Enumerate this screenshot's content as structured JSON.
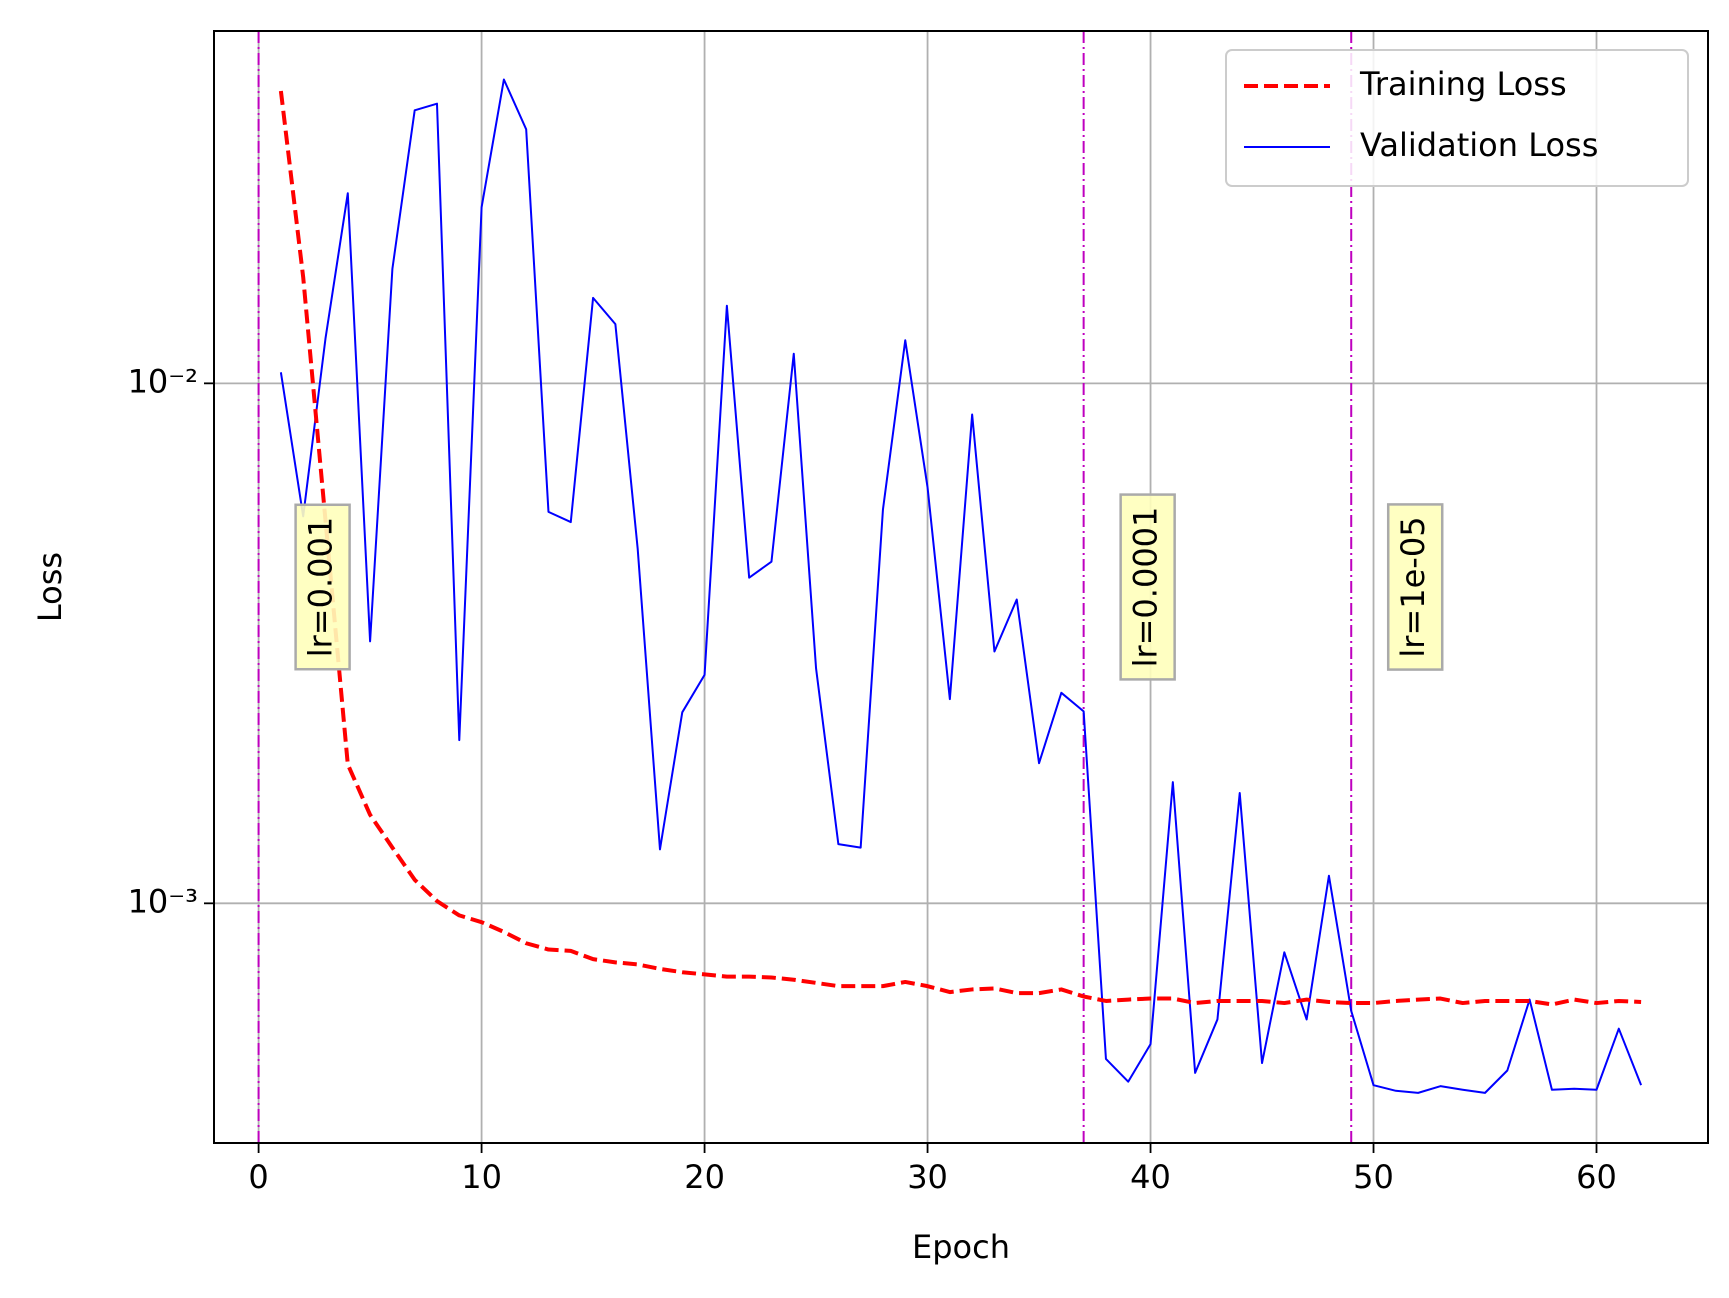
{
  "chart_data": {
    "type": "line",
    "xlabel": "Epoch",
    "ylabel": "Loss",
    "x": [
      1,
      2,
      3,
      4,
      5,
      6,
      7,
      8,
      9,
      10,
      11,
      12,
      13,
      14,
      15,
      16,
      17,
      18,
      19,
      20,
      21,
      22,
      23,
      24,
      25,
      26,
      27,
      28,
      29,
      30,
      31,
      32,
      33,
      34,
      35,
      36,
      37,
      38,
      39,
      40,
      41,
      42,
      43,
      44,
      45,
      46,
      47,
      48,
      49,
      50,
      51,
      52,
      53,
      54,
      55,
      56,
      57,
      58,
      59,
      60,
      61,
      62
    ],
    "series": [
      {
        "name": "Training Loss",
        "color": "#ff0000",
        "linestyle": "dashed",
        "values": [
          0.0365,
          0.016,
          0.00545,
          0.00185,
          0.00148,
          0.00128,
          0.00111,
          0.00101,
          0.000948,
          0.00092,
          0.000881,
          0.000838,
          0.000815,
          0.00081,
          0.000781,
          0.00077,
          0.000763,
          0.000748,
          0.000737,
          0.00073,
          0.000723,
          0.000723,
          0.00072,
          0.000713,
          0.000703,
          0.000693,
          0.000693,
          0.000693,
          0.000706,
          0.000693,
          0.000675,
          0.000683,
          0.000686,
          0.000672,
          0.000672,
          0.000683,
          0.000662,
          0.000649,
          0.000653,
          0.000656,
          0.000656,
          0.000643,
          0.000649,
          0.000649,
          0.000649,
          0.000643,
          0.000653,
          0.000646,
          0.000643,
          0.000643,
          0.000649,
          0.000653,
          0.000656,
          0.000643,
          0.000649,
          0.000649,
          0.000649,
          0.000639,
          0.000653,
          0.000643,
          0.000649,
          0.000646
        ]
      },
      {
        "name": "Validation Loss",
        "color": "#0000ff",
        "linestyle": "solid",
        "values": [
          0.0105,
          0.00555,
          0.0122,
          0.0232,
          0.00319,
          0.0166,
          0.0335,
          0.0345,
          0.00206,
          0.0218,
          0.0384,
          0.0308,
          0.00566,
          0.00541,
          0.0146,
          0.013,
          0.00481,
          0.00127,
          0.00233,
          0.00275,
          0.0141,
          0.00423,
          0.00454,
          0.0114,
          0.00283,
          0.0013,
          0.00128,
          0.00572,
          0.0121,
          0.00631,
          0.00247,
          0.00871,
          0.00305,
          0.00384,
          0.00186,
          0.00254,
          0.00234,
          0.000502,
          0.000454,
          0.000536,
          0.00171,
          0.000472,
          0.000598,
          0.00163,
          0.000493,
          0.000805,
          0.000598,
          0.00113,
          0.000621,
          0.000447,
          0.000436,
          0.000432,
          0.000445,
          0.000438,
          0.000432,
          0.000477,
          0.000653,
          0.000438,
          0.00044,
          0.000438,
          0.000574,
          0.000447
        ]
      }
    ],
    "xlim": [
      -2,
      65
    ],
    "xticks": [
      0,
      10,
      20,
      30,
      40,
      50,
      60
    ],
    "ylim": [
      0.000346,
      0.0476
    ],
    "log_y": true,
    "yticks": [
      {
        "value": 0.001,
        "label": "10⁻³"
      },
      {
        "value": 0.01,
        "label": "10⁻²"
      }
    ],
    "grid": true,
    "legend_loc": "upper right",
    "vlines": [
      {
        "x": 0,
        "label": "lr=0.001"
      },
      {
        "x": 37,
        "label": "lr=0.0001"
      },
      {
        "x": 49,
        "label": "lr=1e-05"
      }
    ],
    "vline_color": "#bf00bf"
  }
}
